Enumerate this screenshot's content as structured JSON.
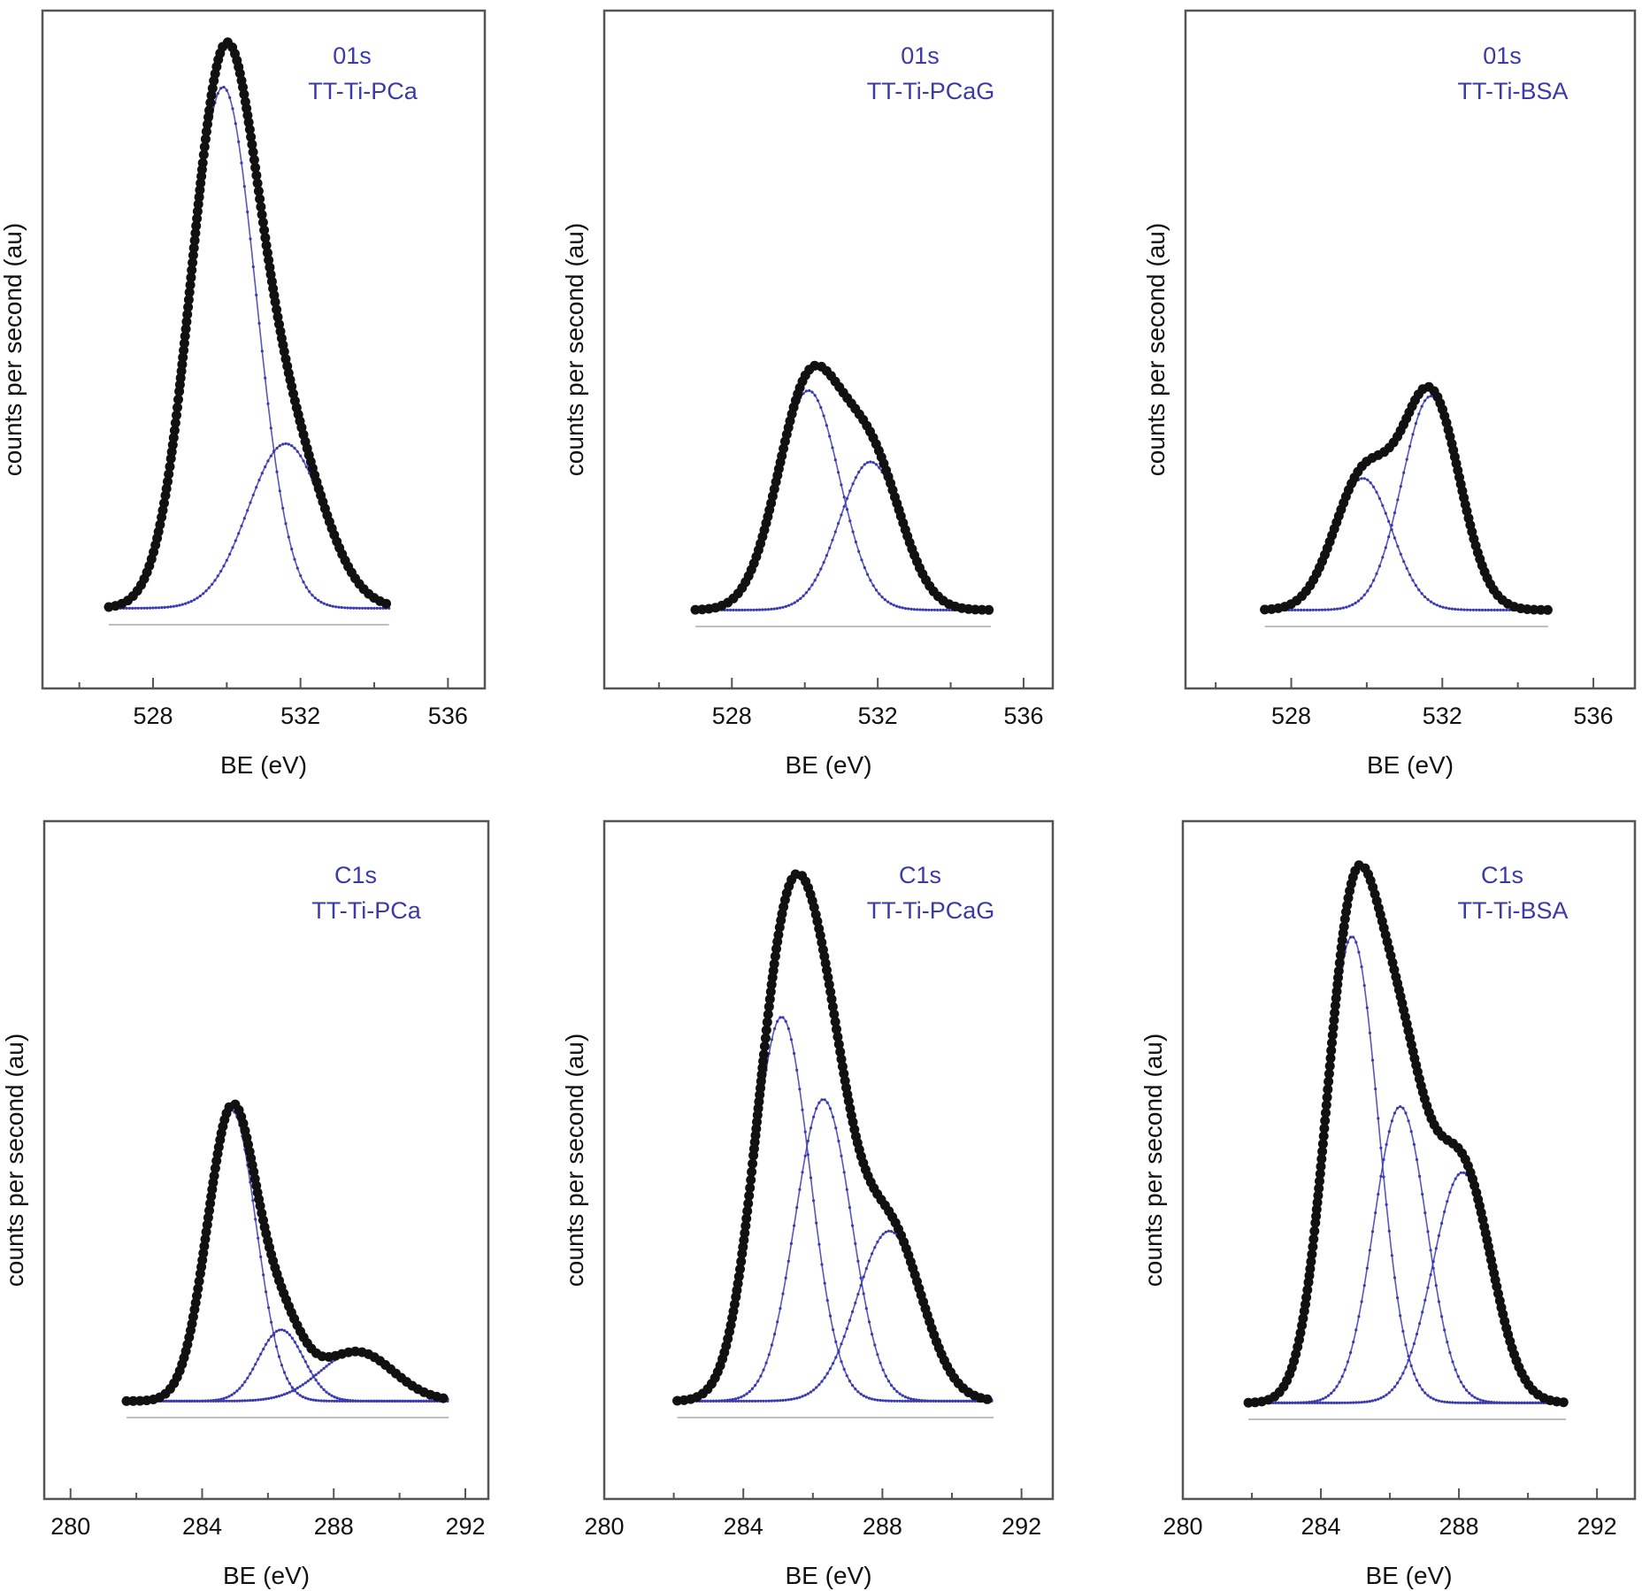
{
  "colors": {
    "data_points": "#111111",
    "component_fit": "#3a3ab0",
    "baseline": "#aaaaaa",
    "annotation": "#3a3aa8",
    "frame": "#555555"
  },
  "chart_data": [
    {
      "type": "line",
      "element": "01s",
      "sample": "TT-Ti-PCa",
      "xlabel": "BE (eV)",
      "ylabel": "counts per second (au)",
      "xlim": [
        525,
        537
      ],
      "xticks": [
        528,
        532,
        536
      ],
      "ylim": [
        0,
        1.15
      ],
      "yticks_visible": false,
      "x_range": [
        526.8,
        534.4
      ],
      "background": 0.03,
      "components": [
        {
          "center": 529.9,
          "height": 0.95,
          "fwhm": 2.1
        },
        {
          "center": 531.6,
          "height": 0.3,
          "fwhm": 2.4
        }
      ],
      "envelope_peak": {
        "x": 530.0,
        "y": 1.0
      }
    },
    {
      "type": "line",
      "element": "01s",
      "sample": "TT-Ti-PCaG",
      "xlabel": "BE (eV)",
      "ylabel": "counts per second (au)",
      "xlim": [
        524.5,
        536.8
      ],
      "xticks": [
        528,
        532,
        536
      ],
      "ylim": [
        0,
        1.15
      ],
      "yticks_visible": false,
      "x_range": [
        527.0,
        535.1
      ],
      "background": 0.03,
      "components": [
        {
          "center": 530.1,
          "height": 0.4,
          "fwhm": 2.0
        },
        {
          "center": 531.8,
          "height": 0.27,
          "fwhm": 2.0
        }
      ],
      "envelope_peak": {
        "x": 530.2,
        "y": 0.44
      }
    },
    {
      "type": "line",
      "element": "01s",
      "sample": "TT-Ti-BSA",
      "xlabel": "BE (eV)",
      "ylabel": "counts per second (au)",
      "xlim": [
        525.2,
        537.1
      ],
      "xticks": [
        528,
        532,
        536
      ],
      "ylim": [
        0,
        1.15
      ],
      "yticks_visible": false,
      "x_range": [
        527.3,
        534.8
      ],
      "background": 0.03,
      "components": [
        {
          "center": 529.9,
          "height": 0.24,
          "fwhm": 1.8
        },
        {
          "center": 531.7,
          "height": 0.39,
          "fwhm": 1.8
        }
      ],
      "envelope_peak": {
        "x": 531.7,
        "y": 0.41
      }
    },
    {
      "type": "line",
      "element": "C1s",
      "sample": "TT-Ti-PCa",
      "xlabel": "BE (eV)",
      "ylabel": "counts per second (au)",
      "xlim": [
        279.2,
        292.7
      ],
      "xticks": [
        280,
        284,
        288,
        292
      ],
      "ylim": [
        0,
        1.2
      ],
      "yticks_visible": false,
      "x_range": [
        281.7,
        291.5
      ],
      "background": 0.03,
      "components": [
        {
          "center": 284.9,
          "height": 0.53,
          "fwhm": 1.75
        },
        {
          "center": 286.4,
          "height": 0.13,
          "fwhm": 1.6
        },
        {
          "center": 288.7,
          "height": 0.09,
          "fwhm": 2.6
        }
      ],
      "envelope_peak": {
        "x": 284.9,
        "y": 0.55
      }
    },
    {
      "type": "line",
      "element": "C1s",
      "sample": "TT-Ti-PCaG",
      "xlabel": "BE (eV)",
      "ylabel": "counts per second (au)",
      "xlim": [
        280.0,
        292.9
      ],
      "xticks": [
        280,
        284,
        288,
        292
      ],
      "ylim": [
        0,
        1.2
      ],
      "yticks_visible": false,
      "x_range": [
        282.1,
        291.2
      ],
      "background": 0.03,
      "components": [
        {
          "center": 285.1,
          "height": 0.7,
          "fwhm": 1.9
        },
        {
          "center": 286.3,
          "height": 0.55,
          "fwhm": 1.9
        },
        {
          "center": 288.2,
          "height": 0.31,
          "fwhm": 2.2
        }
      ],
      "envelope_peak": {
        "x": 285.6,
        "y": 0.95
      }
    },
    {
      "type": "line",
      "element": "C1s",
      "sample": "TT-Ti-BSA",
      "xlabel": "BE (eV)",
      "ylabel": "counts per second (au)",
      "xlim": [
        280.0,
        293.1
      ],
      "xticks": [
        280,
        284,
        288,
        292
      ],
      "ylim": [
        0,
        1.2
      ],
      "yticks_visible": false,
      "x_range": [
        281.9,
        291.1
      ],
      "background": 0.03,
      "components": [
        {
          "center": 284.9,
          "height": 0.85,
          "fwhm": 1.8
        },
        {
          "center": 286.3,
          "height": 0.54,
          "fwhm": 1.8
        },
        {
          "center": 288.1,
          "height": 0.42,
          "fwhm": 2.0
        }
      ],
      "envelope_peak": {
        "x": 285.1,
        "y": 1.0
      }
    }
  ]
}
